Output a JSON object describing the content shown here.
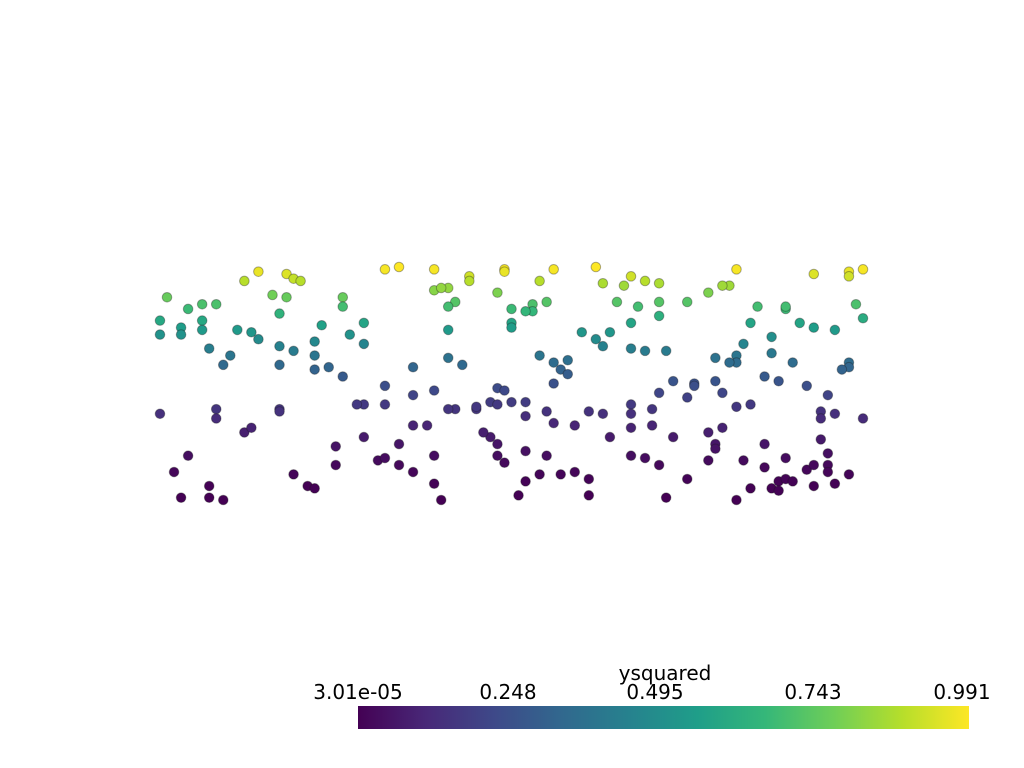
{
  "chart_data": {
    "type": "scatter",
    "title": "",
    "xlabel": "",
    "ylabel": "",
    "xlim": [
      0,
      1
    ],
    "ylim": [
      0,
      1
    ],
    "grid": false,
    "color_by": "ysquared",
    "colormap": "viridis",
    "colorbar": {
      "title": "ysquared",
      "range": [
        3.01e-05,
        0.991
      ],
      "tick_labels": [
        "3.01e-05",
        "0.248",
        "0.495",
        "0.743",
        "0.991"
      ],
      "placement": "bottom"
    },
    "viridis_stops": [
      "#440154",
      "#482878",
      "#3e4989",
      "#31688e",
      "#26828e",
      "#1f9e89",
      "#35b779",
      "#6ece58",
      "#b5de2b",
      "#fde725"
    ],
    "point_edge_color": "#1a1a1a",
    "points": [
      [
        0.12,
        0.94
      ],
      [
        0.14,
        0.98
      ],
      [
        0.18,
        0.97
      ],
      [
        0.19,
        0.95
      ],
      [
        0.2,
        0.94
      ],
      [
        0.32,
        0.99
      ],
      [
        0.34,
        1.0
      ],
      [
        0.39,
        0.99
      ],
      [
        0.44,
        0.96
      ],
      [
        0.44,
        0.94
      ],
      [
        0.49,
        0.99
      ],
      [
        0.49,
        0.98
      ],
      [
        0.54,
        0.94
      ],
      [
        0.56,
        0.99
      ],
      [
        0.62,
        1.0
      ],
      [
        0.63,
        0.93
      ],
      [
        0.67,
        0.96
      ],
      [
        0.66,
        0.92
      ],
      [
        0.69,
        0.94
      ],
      [
        0.71,
        0.93
      ],
      [
        0.82,
        0.99
      ],
      [
        0.81,
        0.92
      ],
      [
        0.93,
        0.97
      ],
      [
        0.98,
        0.98
      ],
      [
        0.98,
        0.96
      ],
      [
        1.0,
        0.99
      ],
      [
        0.01,
        0.87
      ],
      [
        0.04,
        0.82
      ],
      [
        0.06,
        0.84
      ],
      [
        0.08,
        0.84
      ],
      [
        0.06,
        0.77
      ],
      [
        0.16,
        0.88
      ],
      [
        0.18,
        0.87
      ],
      [
        0.17,
        0.8
      ],
      [
        0.26,
        0.87
      ],
      [
        0.26,
        0.83
      ],
      [
        0.39,
        0.9
      ],
      [
        0.41,
        0.91
      ],
      [
        0.4,
        0.91
      ],
      [
        0.42,
        0.85
      ],
      [
        0.41,
        0.83
      ],
      [
        0.48,
        0.89
      ],
      [
        0.5,
        0.82
      ],
      [
        0.53,
        0.84
      ],
      [
        0.53,
        0.81
      ],
      [
        0.5,
        0.76
      ],
      [
        0.5,
        0.74
      ],
      [
        0.55,
        0.85
      ],
      [
        0.52,
        0.81
      ],
      [
        0.65,
        0.85
      ],
      [
        0.68,
        0.83
      ],
      [
        0.71,
        0.85
      ],
      [
        0.75,
        0.85
      ],
      [
        0.78,
        0.89
      ],
      [
        0.8,
        0.92
      ],
      [
        0.85,
        0.83
      ],
      [
        0.89,
        0.82
      ],
      [
        0.89,
        0.83
      ],
      [
        0.99,
        0.84
      ],
      [
        1.0,
        0.78
      ],
      [
        0.0,
        0.77
      ],
      [
        0.0,
        0.71
      ],
      [
        0.03,
        0.74
      ],
      [
        0.03,
        0.71
      ],
      [
        0.06,
        0.73
      ],
      [
        0.11,
        0.73
      ],
      [
        0.13,
        0.72
      ],
      [
        0.14,
        0.69
      ],
      [
        0.07,
        0.65
      ],
      [
        0.1,
        0.62
      ],
      [
        0.09,
        0.58
      ],
      [
        0.23,
        0.75
      ],
      [
        0.29,
        0.76
      ],
      [
        0.27,
        0.71
      ],
      [
        0.22,
        0.68
      ],
      [
        0.19,
        0.64
      ],
      [
        0.22,
        0.62
      ],
      [
        0.22,
        0.56
      ],
      [
        0.24,
        0.57
      ],
      [
        0.26,
        0.53
      ],
      [
        0.29,
        0.67
      ],
      [
        0.17,
        0.66
      ],
      [
        0.17,
        0.58
      ],
      [
        0.41,
        0.73
      ],
      [
        0.6,
        0.72
      ],
      [
        0.64,
        0.72
      ],
      [
        0.62,
        0.69
      ],
      [
        0.67,
        0.76
      ],
      [
        0.71,
        0.79
      ],
      [
        0.67,
        0.65
      ],
      [
        0.69,
        0.64
      ],
      [
        0.72,
        0.64
      ],
      [
        0.63,
        0.66
      ],
      [
        0.84,
        0.76
      ],
      [
        0.87,
        0.7
      ],
      [
        0.91,
        0.76
      ],
      [
        0.93,
        0.74
      ],
      [
        0.96,
        0.73
      ],
      [
        0.87,
        0.63
      ],
      [
        0.82,
        0.62
      ],
      [
        0.82,
        0.59
      ],
      [
        0.81,
        0.59
      ],
      [
        0.79,
        0.61
      ],
      [
        0.83,
        0.67
      ],
      [
        0.9,
        0.59
      ],
      [
        0.98,
        0.59
      ],
      [
        0.98,
        0.57
      ],
      [
        0.97,
        0.56
      ],
      [
        0.41,
        0.61
      ],
      [
        0.43,
        0.58
      ],
      [
        0.54,
        0.62
      ],
      [
        0.56,
        0.59
      ],
      [
        0.58,
        0.6
      ],
      [
        0.57,
        0.56
      ],
      [
        0.58,
        0.54
      ],
      [
        0.56,
        0.5
      ],
      [
        0.36,
        0.57
      ],
      [
        0.36,
        0.45
      ],
      [
        0.32,
        0.49
      ],
      [
        0.48,
        0.48
      ],
      [
        0.49,
        0.47
      ],
      [
        0.47,
        0.42
      ],
      [
        0.48,
        0.41
      ],
      [
        0.5,
        0.42
      ],
      [
        0.52,
        0.42
      ],
      [
        0.39,
        0.47
      ],
      [
        0.32,
        0.41
      ],
      [
        0.29,
        0.41
      ],
      [
        0.28,
        0.41
      ],
      [
        0.42,
        0.39
      ],
      [
        0.45,
        0.39
      ],
      [
        0.45,
        0.4
      ],
      [
        0.41,
        0.39
      ],
      [
        0.71,
        0.46
      ],
      [
        0.73,
        0.51
      ],
      [
        0.76,
        0.5
      ],
      [
        0.76,
        0.49
      ],
      [
        0.79,
        0.51
      ],
      [
        0.86,
        0.53
      ],
      [
        0.88,
        0.51
      ],
      [
        0.92,
        0.49
      ],
      [
        0.95,
        0.45
      ],
      [
        0.75,
        0.44
      ],
      [
        0.67,
        0.41
      ],
      [
        0.67,
        0.37
      ],
      [
        0.7,
        0.39
      ],
      [
        0.8,
        0.46
      ],
      [
        0.84,
        0.41
      ],
      [
        0.94,
        0.38
      ],
      [
        0.94,
        0.35
      ],
      [
        0.96,
        0.37
      ],
      [
        1.0,
        0.35
      ],
      [
        0.17,
        0.39
      ],
      [
        0.17,
        0.38
      ],
      [
        0.08,
        0.39
      ],
      [
        0.0,
        0.37
      ],
      [
        0.08,
        0.35
      ],
      [
        0.61,
        0.38
      ],
      [
        0.63,
        0.37
      ],
      [
        0.55,
        0.38
      ],
      [
        0.52,
        0.36
      ],
      [
        0.82,
        0.4
      ],
      [
        0.12,
        0.29
      ],
      [
        0.13,
        0.31
      ],
      [
        0.04,
        0.19
      ],
      [
        0.02,
        0.12
      ],
      [
        0.03,
        0.01
      ],
      [
        0.07,
        0.06
      ],
      [
        0.07,
        0.01
      ],
      [
        0.09,
        0.0
      ],
      [
        0.19,
        0.11
      ],
      [
        0.21,
        0.06
      ],
      [
        0.22,
        0.05
      ],
      [
        0.25,
        0.23
      ],
      [
        0.25,
        0.15
      ],
      [
        0.29,
        0.27
      ],
      [
        0.31,
        0.17
      ],
      [
        0.32,
        0.18
      ],
      [
        0.34,
        0.24
      ],
      [
        0.34,
        0.15
      ],
      [
        0.36,
        0.32
      ],
      [
        0.38,
        0.32
      ],
      [
        0.36,
        0.12
      ],
      [
        0.39,
        0.07
      ],
      [
        0.4,
        0.0
      ],
      [
        0.39,
        0.19
      ],
      [
        0.47,
        0.27
      ],
      [
        0.46,
        0.29
      ],
      [
        0.48,
        0.24
      ],
      [
        0.48,
        0.19
      ],
      [
        0.49,
        0.16
      ],
      [
        0.51,
        0.02
      ],
      [
        0.52,
        0.08
      ],
      [
        0.54,
        0.11
      ],
      [
        0.55,
        0.19
      ],
      [
        0.52,
        0.21
      ],
      [
        0.57,
        0.11
      ],
      [
        0.59,
        0.12
      ],
      [
        0.56,
        0.33
      ],
      [
        0.59,
        0.32
      ],
      [
        0.61,
        0.02
      ],
      [
        0.61,
        0.09
      ],
      [
        0.64,
        0.27
      ],
      [
        0.67,
        0.31
      ],
      [
        0.67,
        0.19
      ],
      [
        0.7,
        0.32
      ],
      [
        0.69,
        0.18
      ],
      [
        0.71,
        0.15
      ],
      [
        0.73,
        0.27
      ],
      [
        0.72,
        0.01
      ],
      [
        0.75,
        0.09
      ],
      [
        0.78,
        0.17
      ],
      [
        0.79,
        0.24
      ],
      [
        0.79,
        0.22
      ],
      [
        0.78,
        0.29
      ],
      [
        0.8,
        0.31
      ],
      [
        0.82,
        0.0
      ],
      [
        0.83,
        0.17
      ],
      [
        0.84,
        0.05
      ],
      [
        0.86,
        0.14
      ],
      [
        0.86,
        0.24
      ],
      [
        0.87,
        0.05
      ],
      [
        0.88,
        0.08
      ],
      [
        0.88,
        0.04
      ],
      [
        0.89,
        0.09
      ],
      [
        0.89,
        0.18
      ],
      [
        0.9,
        0.08
      ],
      [
        0.92,
        0.13
      ],
      [
        0.93,
        0.15
      ],
      [
        0.93,
        0.06
      ],
      [
        0.95,
        0.2
      ],
      [
        0.95,
        0.15
      ],
      [
        0.95,
        0.12
      ],
      [
        0.96,
        0.07
      ],
      [
        0.98,
        0.11
      ],
      [
        0.94,
        0.26
      ]
    ]
  }
}
